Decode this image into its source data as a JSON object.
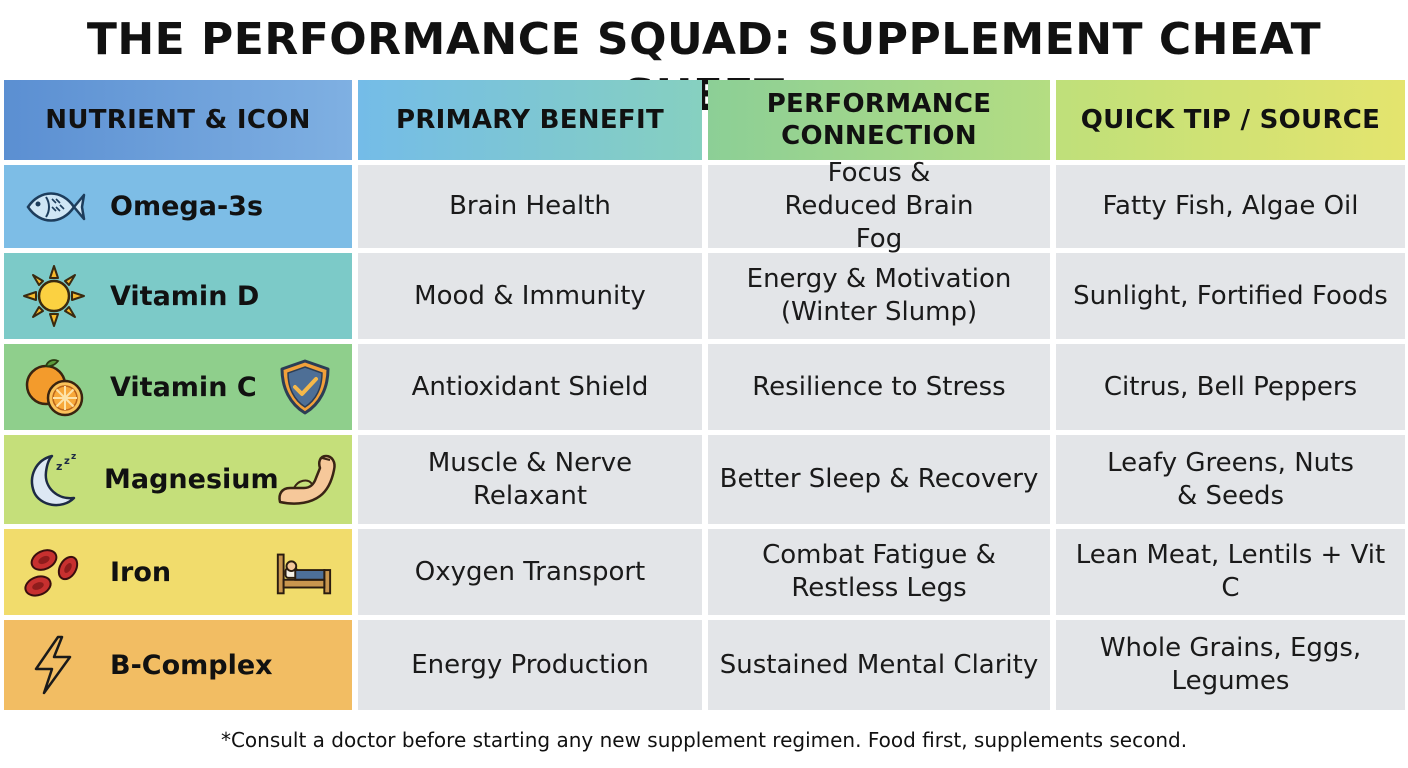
{
  "title": "THE PERFORMANCE SQUAD: SUPPLEMENT CHEAT SHEET",
  "headers": [
    "NUTRIENT & ICON",
    "PRIMARY BENEFIT",
    "PERFORMANCE CONNECTION",
    "QUICK TIP / SOURCE"
  ],
  "rows": [
    {
      "nutrient": "Omega-3s",
      "icons": [
        "fish-icon"
      ],
      "benefit": "Brain Health",
      "connection": "Focus & Reduced Brain Fog",
      "source": "Fatty Fish, Algae Oil",
      "color": "#7dbde6"
    },
    {
      "nutrient": "Vitamin D",
      "icons": [
        "sun-icon"
      ],
      "benefit": "Mood & Immunity",
      "connection": "Energy & Motivation (Winter Slump)",
      "source": "Sunlight, Fortified Foods",
      "color": "#7ccac8"
    },
    {
      "nutrient": "Vitamin C",
      "icons": [
        "orange-icon",
        "shield-check-icon"
      ],
      "benefit": "Antioxidant Shield",
      "connection": "Resilience to Stress",
      "source": "Citrus, Bell Peppers",
      "color": "#8fcf8c"
    },
    {
      "nutrient": "Magnesium",
      "icons": [
        "moon-sleep-icon",
        "flexed-arm-icon"
      ],
      "benefit": "Muscle & Nerve Relaxant",
      "connection": "Better Sleep & Recovery",
      "source": "Leafy Greens, Nuts & Seeds",
      "color": "#c5df7a"
    },
    {
      "nutrient": "Iron",
      "icons": [
        "red-blood-cells-icon",
        "bed-icon"
      ],
      "benefit": "Oxygen Transport",
      "connection": "Combat Fatigue & Restless Legs",
      "source": "Lean Meat, Lentils + Vit C",
      "color": "#f1dc6c"
    },
    {
      "nutrient": "B-Complex",
      "icons": [
        "lightning-bolt-icon"
      ],
      "benefit": "Energy Production",
      "connection": "Sustained Mental Clarity",
      "source": "Whole Grains, Eggs, Legumes",
      "color": "#f2bd63"
    }
  ],
  "footnote": "*Consult a doctor before starting any new supplement regimen. Food first, supplements second."
}
